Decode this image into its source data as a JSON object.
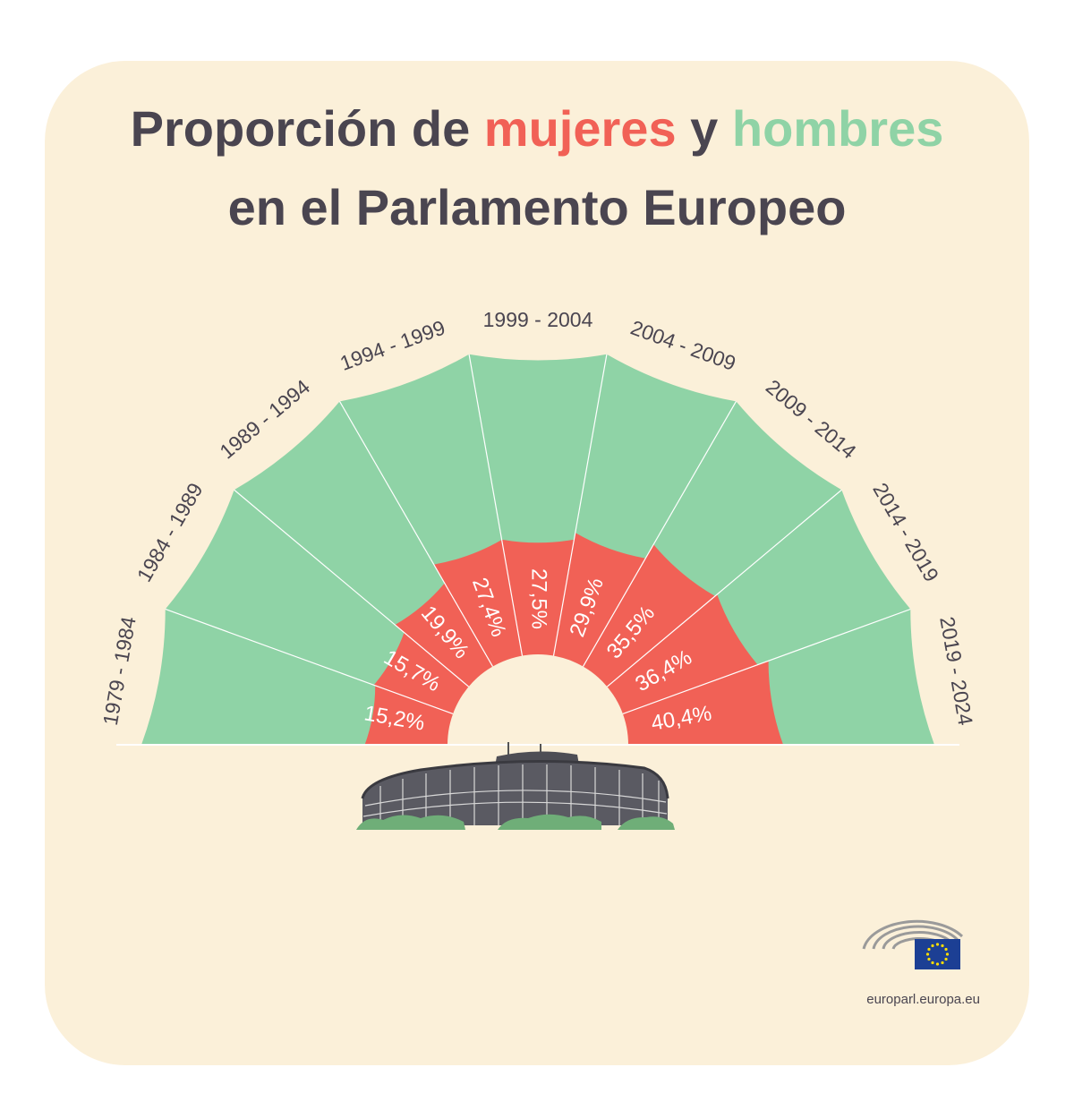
{
  "title": {
    "line1_pre": "Proporción de ",
    "line1_women": "mujeres",
    "line1_mid": " y ",
    "line1_men": "hombres",
    "line2": "en el Parlamento Europeo"
  },
  "footer": {
    "website": "europarl.europa.eu"
  },
  "colors": {
    "women": "#f16156",
    "men": "#8fd3a6",
    "background": "#fbf0d9",
    "text": "#4a4550"
  },
  "chart_data": {
    "type": "pie",
    "layout": "semicircle-rose",
    "categories": [
      "1979 - 1984",
      "1984 - 1989",
      "1989 - 1994",
      "1994 - 1999",
      "1999 - 2004",
      "2004 - 2009",
      "2009 - 2014",
      "2014 - 2019",
      "2019 - 2024"
    ],
    "series": [
      {
        "name": "mujeres",
        "values": [
          15.2,
          15.7,
          19.9,
          27.4,
          27.5,
          29.9,
          35.5,
          36.4,
          40.4
        ]
      }
    ],
    "value_labels": [
      "15,2%",
      "15,7%",
      "19,9%",
      "27,4%",
      "27,5%",
      "29,9%",
      "35,5%",
      "36,4%",
      "40,4%"
    ]
  }
}
